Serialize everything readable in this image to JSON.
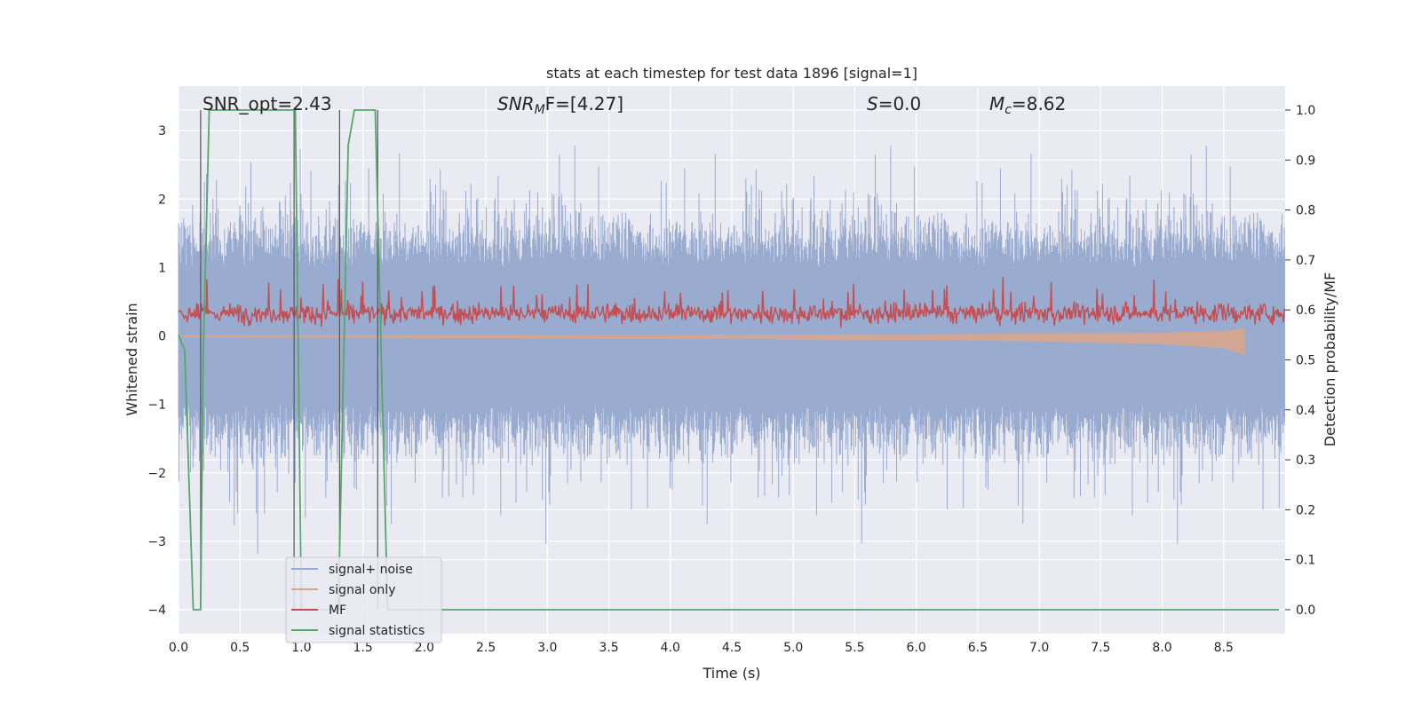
{
  "chart_data": {
    "type": "line",
    "title": "stats at each timestep for test data 1896 [signal=1]",
    "xlabel": "Time (s)",
    "ylabel_left": "Whitened strain",
    "ylabel_right": "Detection probability/MF",
    "xlim": [
      0,
      9.0
    ],
    "ylim_left": [
      -4.35,
      3.65
    ],
    "ylim_right": [
      -0.048,
      1.048
    ],
    "xticks": [
      "0.0",
      "0.5",
      "1.0",
      "1.5",
      "2.0",
      "2.5",
      "3.0",
      "3.5",
      "4.0",
      "4.5",
      "5.0",
      "5.5",
      "6.0",
      "6.5",
      "7.0",
      "7.5",
      "8.0",
      "8.5"
    ],
    "yticks_left": [
      "3",
      "2",
      "1",
      "0",
      "−1",
      "−2",
      "−3",
      "−4"
    ],
    "yticks_right": [
      "1.0",
      "0.9",
      "0.8",
      "0.7",
      "0.6",
      "0.5",
      "0.4",
      "0.3",
      "0.2",
      "0.1",
      "0.0"
    ],
    "grid": true,
    "legend_position": "lower-left",
    "annotations": {
      "snr_opt": "SNR_opt=2.43",
      "snr_mf_base": "SNR",
      "snr_mf_sub": "M",
      "snr_mf_rest": "F=[4.27]",
      "s_sym": "S",
      "s_rest": "=0.0",
      "mc_base": "M",
      "mc_sub": "c",
      "mc_rest": "=8.62"
    },
    "series": [
      {
        "name": "signal+ noise",
        "color": "#9aabd0",
        "axis": "left",
        "description_values": {
          "envelope_upper": [
            2.6,
            3.3
          ],
          "envelope_lower": [
            -2.6,
            -4.0
          ]
        }
      },
      {
        "name": "signal only",
        "color": "#d9a58c",
        "axis": "left",
        "description_values": {
          "x": [
            0,
            2,
            4,
            6,
            7,
            8,
            8.5,
            8.67
          ],
          "amplitude": [
            0.02,
            0.03,
            0.04,
            0.06,
            0.08,
            0.12,
            0.18,
            0.28
          ]
        }
      },
      {
        "name": "MF",
        "color": "#c44e52",
        "axis": "left",
        "description_values": {
          "center": 0.33,
          "upper": [
            0.55,
            0.95
          ]
        }
      },
      {
        "name": "signal statistics",
        "color": "#55a868",
        "axis": "right",
        "x": [
          0,
          0.05,
          0.12,
          0.18,
          0.2,
          0.25,
          0.95,
          1.0,
          1.3,
          1.38,
          1.43,
          1.6,
          1.65,
          1.7,
          8.95
        ],
        "values": [
          0.55,
          0.52,
          0.0,
          0.0,
          0.5,
          1.0,
          1.0,
          0.0,
          0.0,
          0.93,
          1.0,
          1.0,
          0.5,
          0.0,
          0.0
        ]
      }
    ],
    "vlines": {
      "color": "#555555",
      "x": [
        0.18,
        0.94,
        1.31,
        1.62
      ]
    }
  }
}
